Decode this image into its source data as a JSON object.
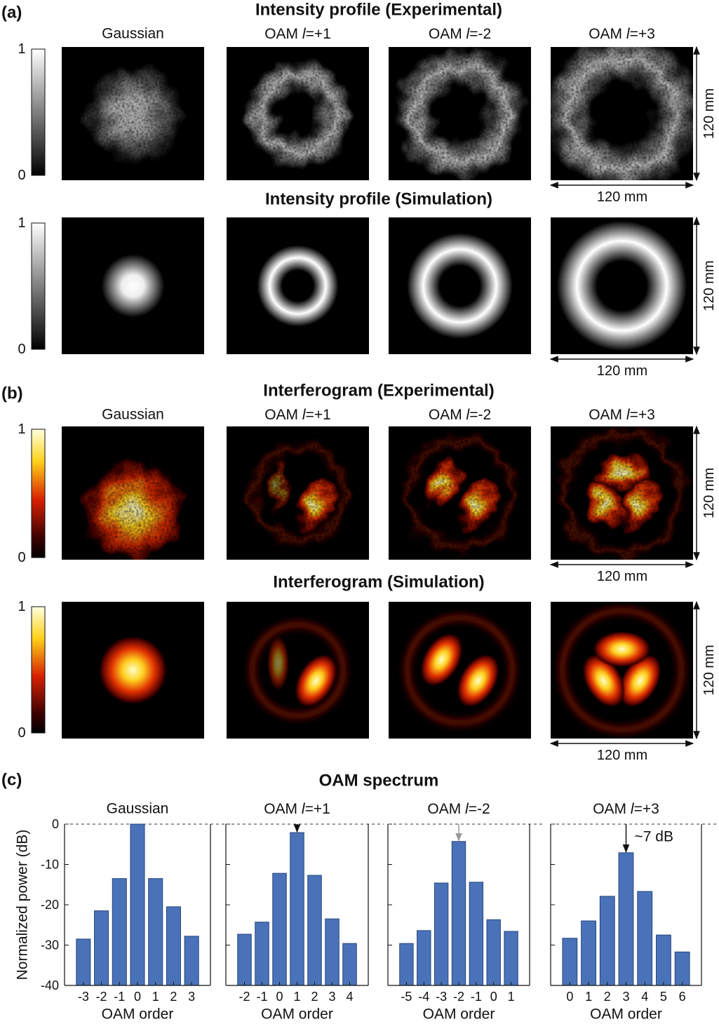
{
  "panels": [
    {
      "label": "(a)",
      "title": "Intensity profile (Experimental)",
      "columns": [
        "Gaussian",
        "OAM l=+1",
        "OAM l=-2",
        "OAM l=+3"
      ],
      "colormap": "gray",
      "source": "experimental",
      "clim": [
        0,
        1
      ],
      "cticks": [
        1,
        0
      ],
      "scale_vertical": "120 mm",
      "scale_horizontal": "120 mm"
    },
    {
      "title": "Intensity profile (Simulation)",
      "colormap": "gray",
      "source": "simulation",
      "clim": [
        0,
        1
      ],
      "cticks": [
        1,
        0
      ],
      "scale_vertical": "120 mm",
      "scale_horizontal": "120 mm"
    },
    {
      "label": "(b)",
      "title": "Interferogram (Experimental)",
      "columns": [
        "Gaussian",
        "OAM l=+1",
        "OAM l=-2",
        "OAM l=+3"
      ],
      "colormap": "hot",
      "source": "experimental",
      "clim": [
        0,
        1
      ],
      "cticks": [
        1,
        0
      ],
      "scale_vertical": "120 mm",
      "scale_horizontal": "120 mm"
    },
    {
      "title": "Interferogram (Simulation)",
      "colormap": "hot",
      "source": "simulation",
      "clim": [
        0,
        1
      ],
      "cticks": [
        1,
        0
      ],
      "scale_vertical": "120 mm",
      "scale_horizontal": "120 mm"
    }
  ],
  "spectrum": {
    "label": "(c)",
    "title": "OAM spectrum"
  },
  "chart_data": [
    {
      "type": "bar",
      "title": "Gaussian",
      "categories": [
        "-3",
        "-2",
        "-1",
        "0",
        "1",
        "2",
        "3"
      ],
      "values": [
        -28.5,
        -21.5,
        -13.5,
        0,
        -13.5,
        -20.5,
        -27.8
      ],
      "color": "#4a72b8",
      "ylim": [
        -40,
        0
      ],
      "yticks": [
        -40,
        -30,
        -20,
        -10,
        0
      ],
      "ytick_labels": true,
      "ylabel": "Normalized power (dB)",
      "xlabel": "OAM order",
      "zero_line": true
    },
    {
      "type": "bar",
      "title": "OAM l=+1",
      "categories": [
        "-2",
        "-1",
        "0",
        "1",
        "2",
        "3",
        "4"
      ],
      "values": [
        -27.3,
        -24.3,
        -12.2,
        -2.1,
        -12.7,
        -23.5,
        -29.6
      ],
      "color": "#4a72b8",
      "ylim": [
        -40,
        0
      ],
      "yticks": [
        -40,
        -30,
        -20,
        -10,
        0
      ],
      "ytick_labels": false,
      "xlabel": "OAM order",
      "zero_line": true,
      "peak_arrow": "#111"
    },
    {
      "type": "bar",
      "title": "OAM l=-2",
      "categories": [
        "-5",
        "-4",
        "-3",
        "-2",
        "-1",
        "0",
        "1"
      ],
      "values": [
        -29.6,
        -26.4,
        -14.6,
        -4.3,
        -14.4,
        -23.7,
        -26.6
      ],
      "color": "#4a72b8",
      "ylim": [
        -40,
        0
      ],
      "yticks": [
        -40,
        -30,
        -20,
        -10,
        0
      ],
      "ytick_labels": false,
      "xlabel": "OAM order",
      "zero_line": true,
      "peak_arrow": "#999"
    },
    {
      "type": "bar",
      "title": "OAM l=+3",
      "categories": [
        "0",
        "1",
        "2",
        "3",
        "4",
        "5",
        "6"
      ],
      "values": [
        -28.3,
        -24,
        -17.9,
        -7.1,
        -16.7,
        -27.5,
        -31.7
      ],
      "color": "#4a72b8",
      "ylim": [
        -40,
        0
      ],
      "yticks": [
        -40,
        -30,
        -20,
        -10,
        0
      ],
      "ytick_labels": false,
      "xlabel": "OAM order",
      "zero_line": true,
      "peak_arrow": "#111",
      "annotation": "~7 dB"
    }
  ]
}
